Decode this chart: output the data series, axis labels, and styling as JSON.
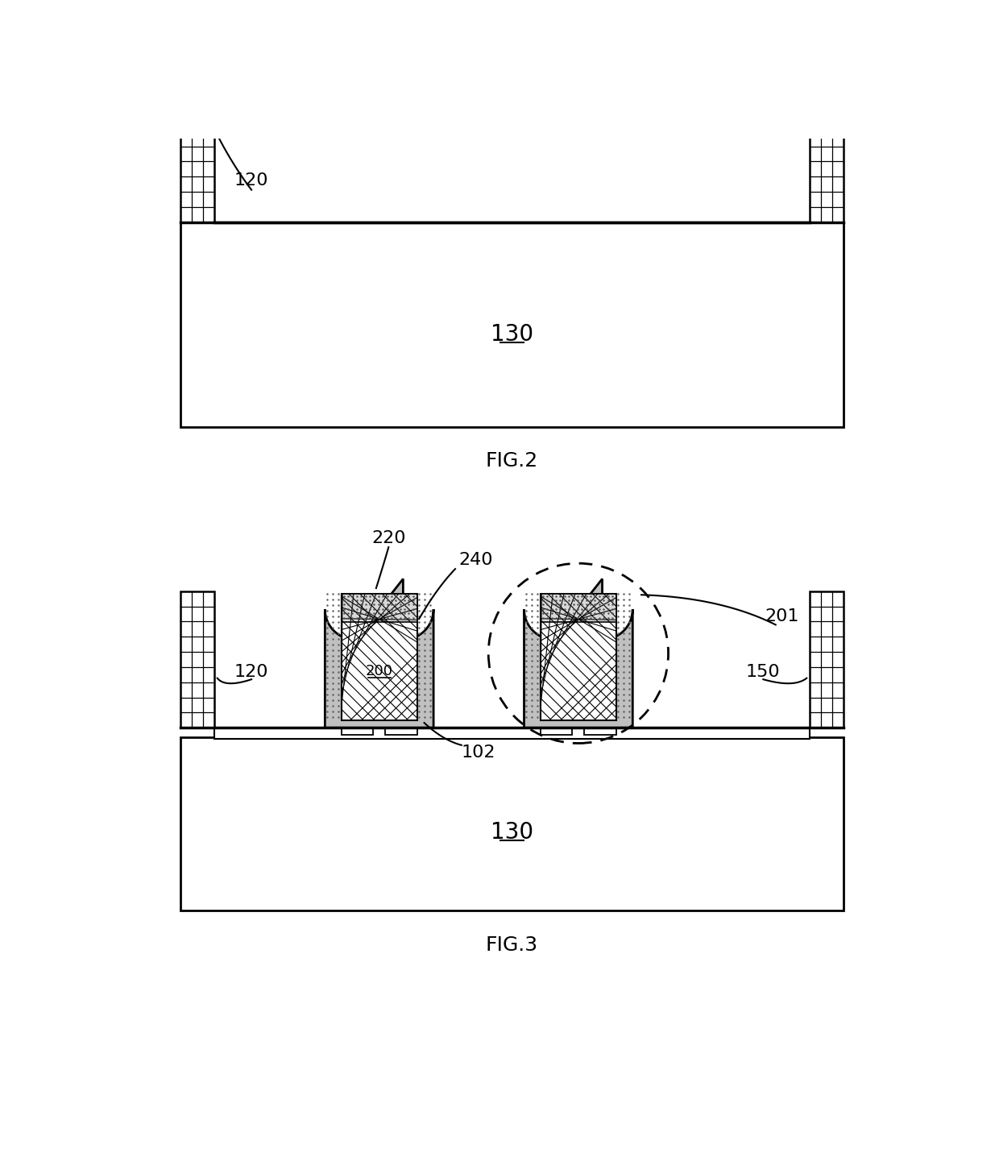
{
  "fig_width": 12.4,
  "fig_height": 14.31,
  "bg_color": "#ffffff",
  "line_color": "#000000",
  "fig2_caption": "FIG.2",
  "fig3_caption": "FIG.3",
  "label_120_fig2": "120",
  "label_130_fig2": "130",
  "label_120_fig3": "120",
  "label_130_fig3": "130",
  "label_150_fig3": "150",
  "label_200_fig3": "200",
  "label_201_fig3": "201",
  "label_220_fig3": "220",
  "label_240_fig3": "240",
  "label_102_fig3": "102"
}
